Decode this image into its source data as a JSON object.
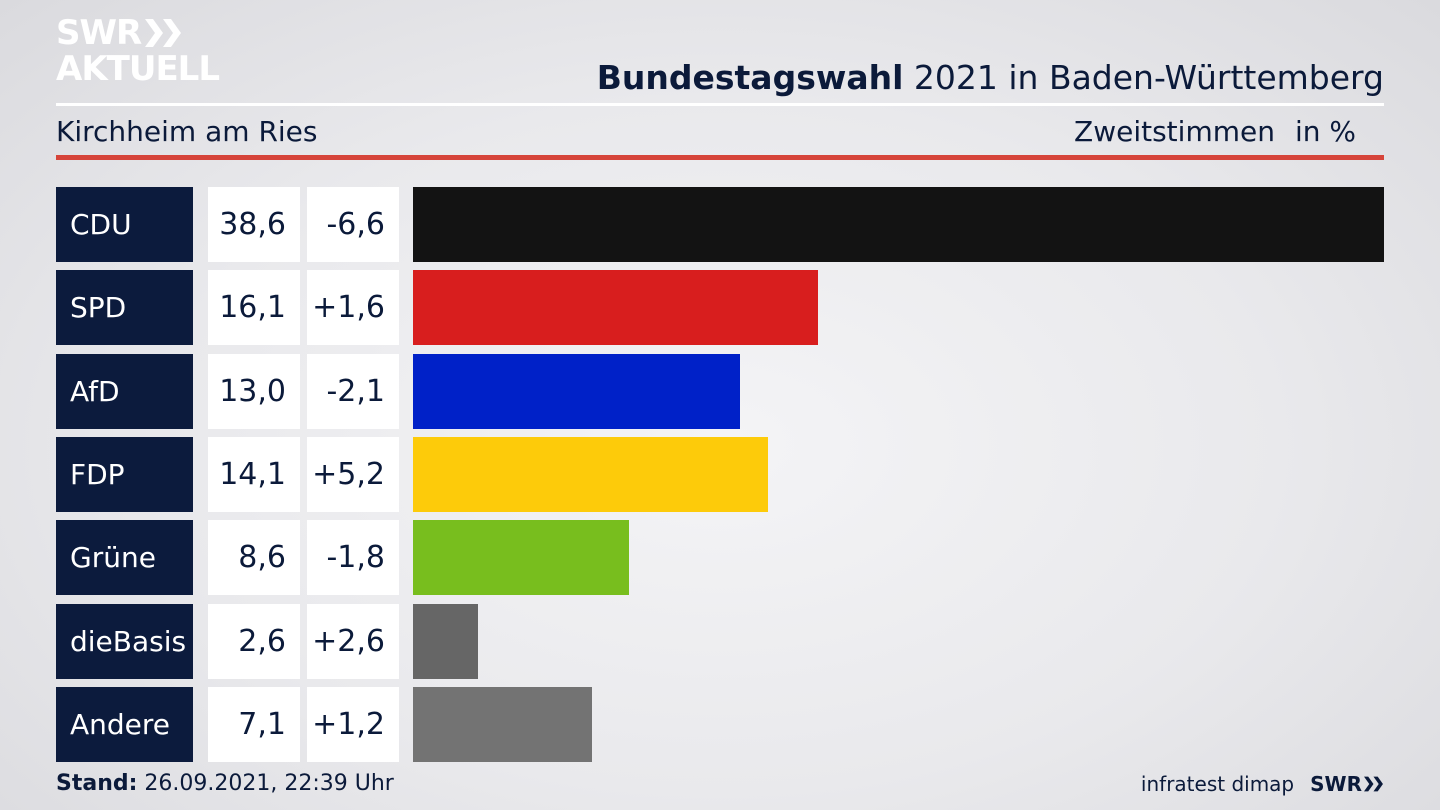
{
  "logo": {
    "line1": "SWR",
    "line2": "AKTUELL"
  },
  "header": {
    "title_bold": "Bundestagswahl",
    "title_rest": " 2021 in Baden-Württemberg",
    "region": "Kirchheim am Ries",
    "subtitle": "Zweitstimmen",
    "unit": "in %"
  },
  "colors": {
    "accent_red": "#d6443a",
    "party_label_bg": "#0c1b3d"
  },
  "chart_data": {
    "type": "bar",
    "orientation": "horizontal",
    "categories": [
      "CDU",
      "SPD",
      "AfD",
      "FDP",
      "Grüne",
      "dieBasis",
      "Andere"
    ],
    "values": [
      38.6,
      16.1,
      13.0,
      14.1,
      8.6,
      2.6,
      7.1
    ],
    "value_labels": [
      "38,6",
      "16,1",
      "13,0",
      "14,1",
      "8,6",
      "2,6",
      "7,1"
    ],
    "change_labels": [
      "-6,6",
      "+1,6",
      "-2,1",
      "+5,2",
      "-1,8",
      "+2,6",
      "+1,2"
    ],
    "changes": [
      -6.6,
      1.6,
      -2.1,
      5.2,
      -1.8,
      2.6,
      1.2
    ],
    "colors": [
      "#131313",
      "#d81e1e",
      "#0021c8",
      "#fdcb0a",
      "#78be1e",
      "#666666",
      "#737373"
    ],
    "xlim": [
      0,
      38.6
    ]
  },
  "footer": {
    "stand_label": "Stand:",
    "stand_value": " 26.09.2021, 22:39 Uhr",
    "source": "infratest dimap",
    "brand": "SWR"
  }
}
